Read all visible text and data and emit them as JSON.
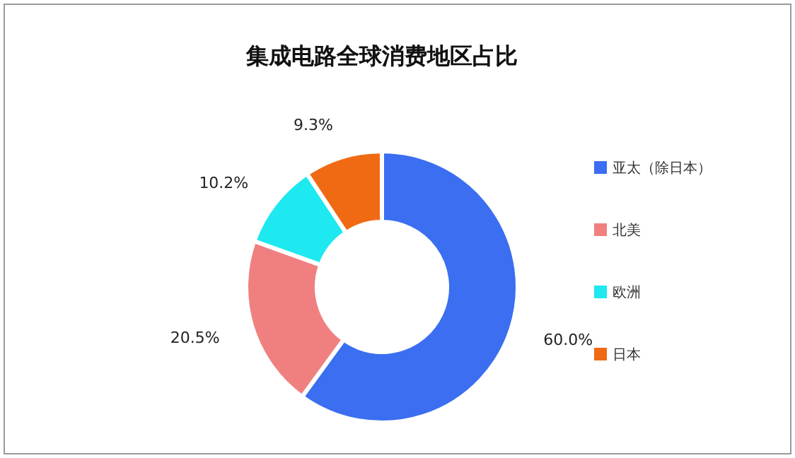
{
  "chart_data": {
    "type": "donut",
    "title": "集成电路全球消费地区占比",
    "categories": [
      "亚太（除日本）",
      "北美",
      "欧洲",
      "日本"
    ],
    "values": [
      60.0,
      20.5,
      10.2,
      9.3
    ],
    "value_labels": [
      "60.0%",
      "20.5%",
      "10.2%",
      "9.3%"
    ],
    "colors": [
      "#3b6ef0",
      "#f08080",
      "#1ee8f0",
      "#f06a14"
    ],
    "legend": "right"
  }
}
